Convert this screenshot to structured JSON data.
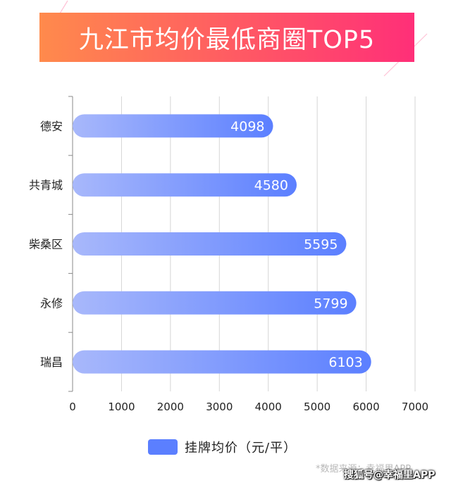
{
  "banner": {
    "title": "九江市均价最低商圈TOP5"
  },
  "chart_data": {
    "type": "bar",
    "orientation": "horizontal",
    "title": "九江市均价最低商圈TOP5",
    "categories": [
      "德安",
      "共青城",
      "柴桑区",
      "永修",
      "瑞昌"
    ],
    "series": [
      {
        "name": "挂牌均价（元/平）",
        "values": [
          4098,
          4580,
          5595,
          5799,
          6103
        ]
      }
    ],
    "xlim": [
      0,
      7000
    ],
    "x_ticks": [
      0,
      1000,
      2000,
      3000,
      4000,
      5000,
      6000,
      7000
    ],
    "grid": true,
    "legend_position": "bottom",
    "colors": {
      "bar_start": "#a8b8fb",
      "bar_end": "#5b7fff",
      "grid": "#d6d6d6",
      "axis": "#888888"
    }
  },
  "legend": {
    "label": "挂牌均价（元/平）"
  },
  "source_note": "*数据来源：幸福里APP",
  "watermark": "搜狐号@幸福里APP"
}
